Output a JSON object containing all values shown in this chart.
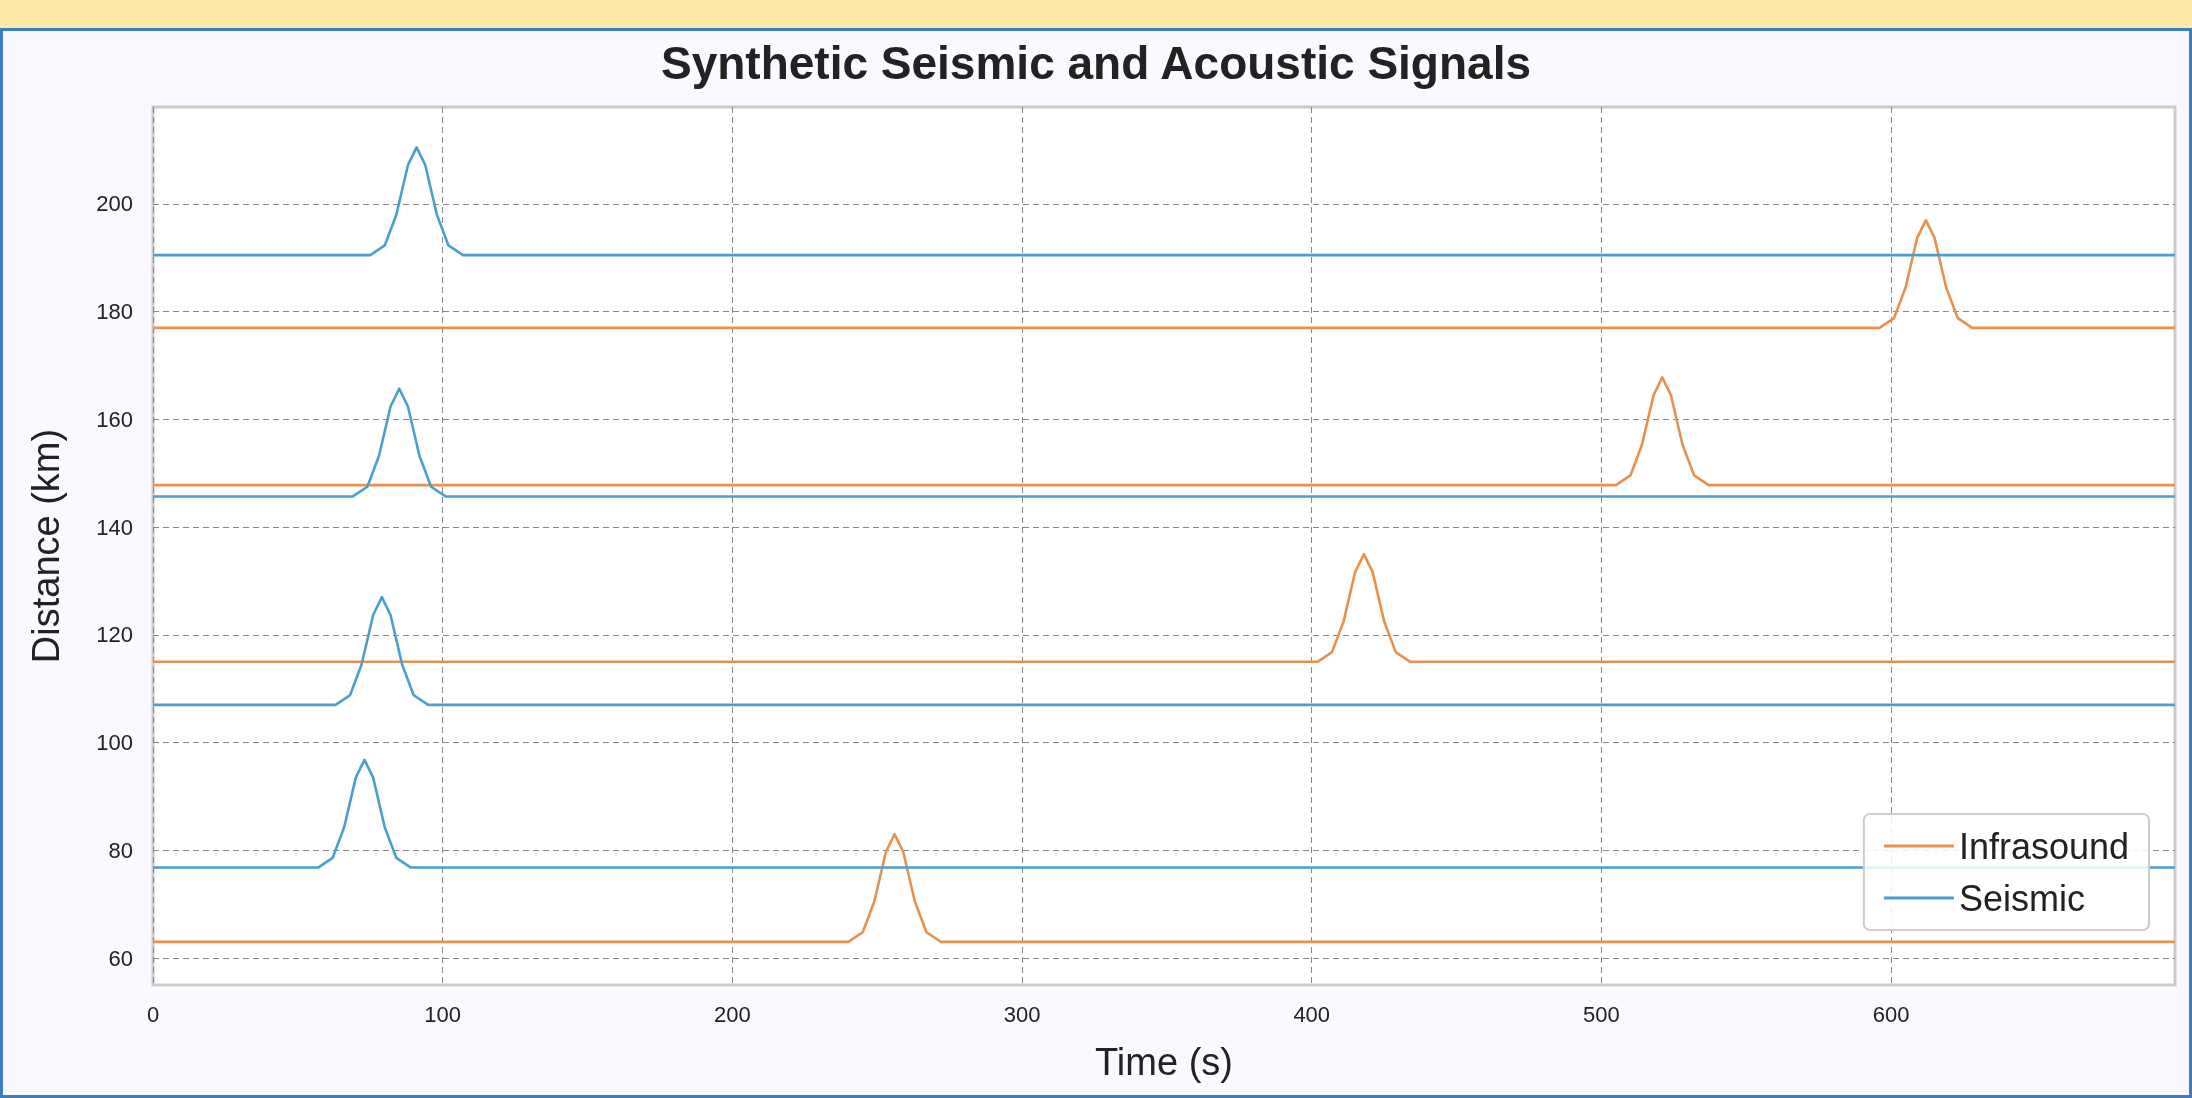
{
  "chart_data": {
    "type": "line",
    "title": "Synthetic Seismic and Acoustic Signals",
    "xlabel": "Time (s)",
    "ylabel": "Distance (km)",
    "xlim": [
      0,
      698
    ],
    "xticks": [
      0,
      100,
      200,
      300,
      400,
      500,
      600
    ],
    "ylim": [
      55,
      218
    ],
    "yticks": [
      60,
      80,
      100,
      120,
      140,
      160,
      180,
      200
    ],
    "grid": true,
    "legend": "bottom right",
    "marker": "none",
    "line_style": "solid",
    "series": [
      {
        "name": "Infrasound",
        "color": "#e8914f",
        "x": [
          0,
          240,
          245,
          249,
          253,
          256,
          259,
          263,
          267,
          272,
          698
        ],
        "values": [
          63,
          63,
          64.8,
          70.5,
          79.7,
          83,
          79.7,
          70.5,
          64.8,
          63,
          63
        ]
      },
      {
        "name": "Seismic",
        "color": "#4a9fcc",
        "x": [
          0,
          57,
          62,
          66,
          70,
          73,
          76,
          80,
          84,
          89,
          698
        ],
        "values": [
          76.8,
          76.8,
          78.6,
          84.3,
          93.5,
          96.8,
          93.5,
          84.3,
          78.6,
          76.8,
          76.8
        ]
      },
      {
        "color": "#e8914f",
        "x": [
          0,
          402,
          407,
          411,
          415,
          418,
          421,
          425,
          429,
          434,
          698
        ],
        "values": [
          115,
          115,
          116.8,
          122.5,
          131.7,
          135,
          131.7,
          122.5,
          116.8,
          115,
          115
        ]
      },
      {
        "color": "#4a9fcc",
        "x": [
          0,
          63,
          68,
          72,
          76,
          79,
          82,
          86,
          90,
          95,
          698
        ],
        "values": [
          107,
          107,
          108.8,
          114.5,
          123.7,
          127,
          123.7,
          114.5,
          108.8,
          107,
          107
        ]
      },
      {
        "color": "#e8914f",
        "x": [
          0,
          505,
          510,
          514,
          518,
          521,
          524,
          528,
          532,
          537,
          698
        ],
        "values": [
          147.8,
          147.8,
          149.6,
          155.3,
          164.5,
          167.8,
          164.5,
          155.3,
          149.6,
          147.8,
          147.8
        ]
      },
      {
        "color": "#4a9fcc",
        "x": [
          0,
          69,
          74,
          78,
          82,
          85,
          88,
          92,
          96,
          101,
          698
        ],
        "values": [
          145.7,
          145.7,
          147.5,
          153.2,
          162.4,
          165.7,
          162.4,
          153.2,
          147.5,
          145.7,
          145.7
        ]
      },
      {
        "color": "#e8914f",
        "x": [
          0,
          596,
          601,
          605,
          609,
          612,
          615,
          619,
          623,
          628,
          698
        ],
        "values": [
          177,
          177,
          178.8,
          184.5,
          193.7,
          197,
          193.7,
          184.5,
          178.8,
          177,
          177
        ]
      },
      {
        "color": "#4a9fcc",
        "x": [
          0,
          75,
          80,
          84,
          88,
          91,
          94,
          98,
          102,
          107,
          698
        ],
        "values": [
          190.5,
          190.5,
          192.3,
          198,
          207.2,
          210.5,
          207.2,
          198,
          192.3,
          190.5,
          190.5
        ]
      }
    ]
  }
}
